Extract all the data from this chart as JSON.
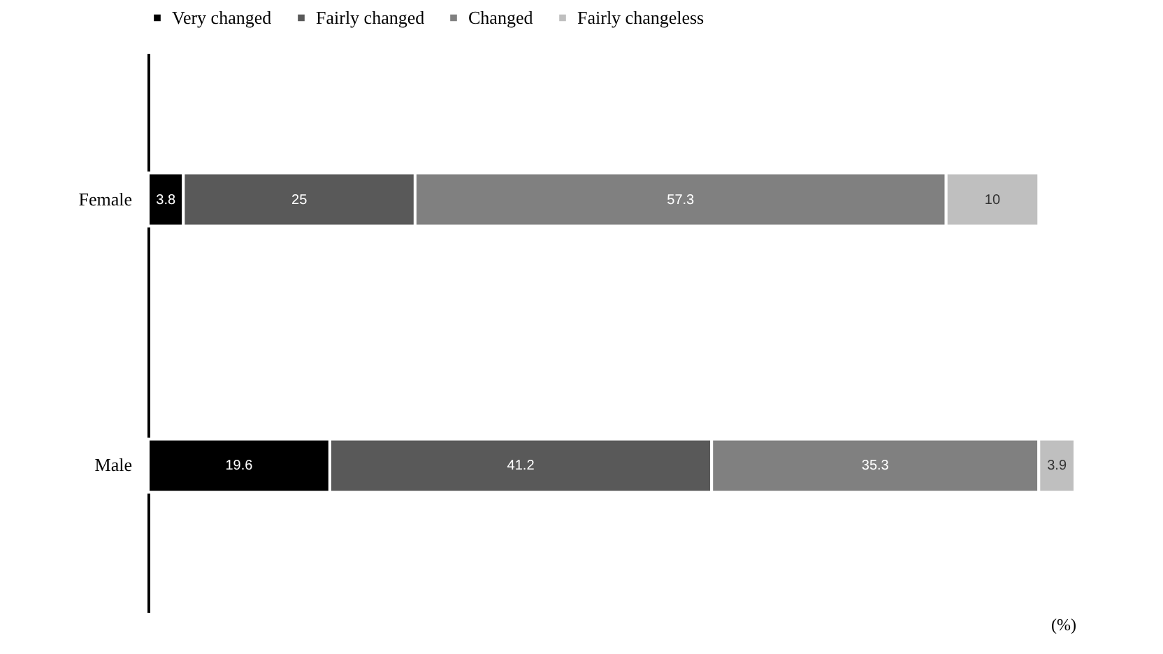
{
  "chart_data": {
    "type": "bar",
    "orientation": "horizontal",
    "stacked": true,
    "data_labels": true,
    "categories": [
      "Female",
      "Male"
    ],
    "series": [
      {
        "name": "Very changed",
        "color": "#000000",
        "values": [
          3.8,
          19.6
        ]
      },
      {
        "name": "Fairly changed",
        "color": "#595959",
        "values": [
          25,
          41.2
        ]
      },
      {
        "name": "Changed",
        "color": "#808080",
        "values": [
          57.3,
          35.3
        ]
      },
      {
        "name": "Fairly changeless",
        "color": "#bfbfbf",
        "values": [
          10,
          3.9
        ]
      }
    ],
    "legend": "top",
    "tick_labels": "y",
    "annotations": [
      "(%)"
    ]
  }
}
